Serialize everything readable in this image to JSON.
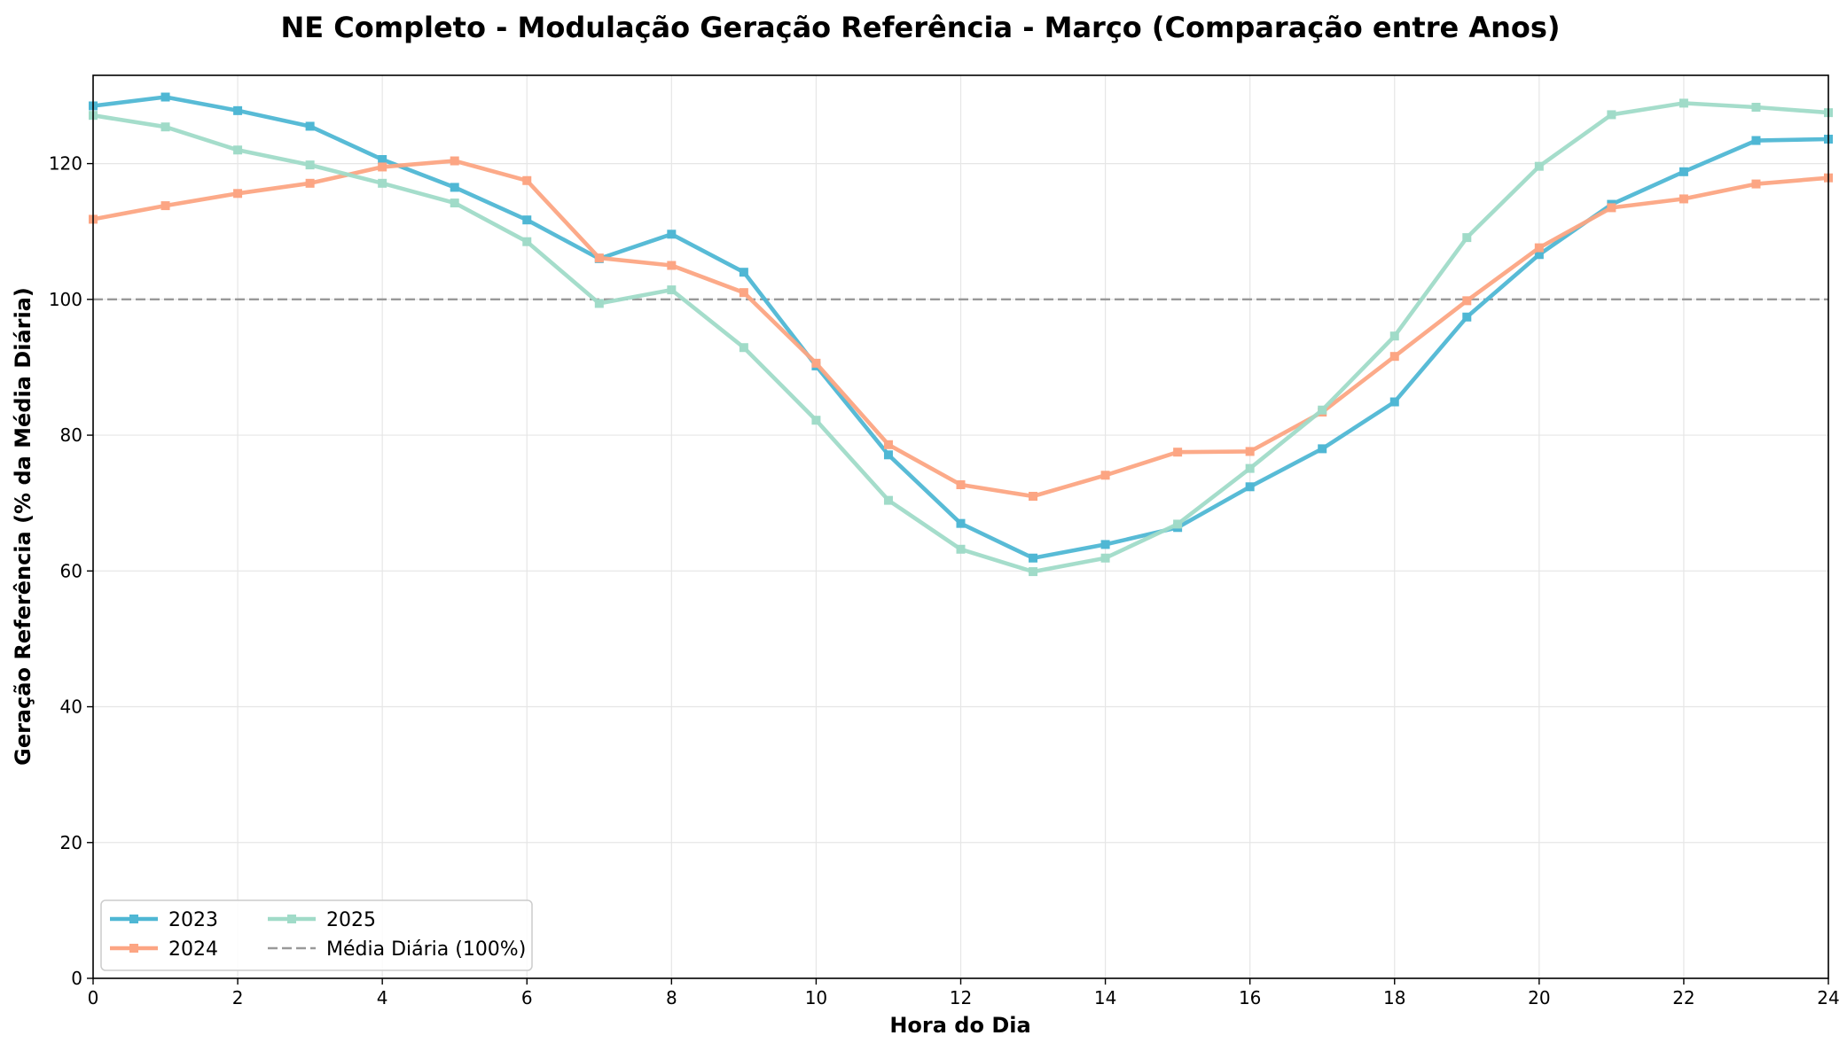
{
  "chart_data": {
    "type": "line",
    "title": "NE Completo - Modulação Geração Referência - Março (Comparação entre Anos)",
    "xlabel": "Hora do Dia",
    "ylabel": "Geração Referência (% da Média Diária)",
    "xlim": [
      0,
      24
    ],
    "ylim": [
      0,
      133
    ],
    "xticks": [
      0,
      2,
      4,
      6,
      8,
      10,
      12,
      14,
      16,
      18,
      20,
      22,
      24
    ],
    "yticks": [
      0,
      20,
      40,
      60,
      80,
      100,
      120
    ],
    "grid": true,
    "legend_position": "lower-left",
    "x": [
      0,
      1,
      2,
      3,
      4,
      5,
      6,
      7,
      8,
      9,
      10,
      11,
      12,
      13,
      14,
      15,
      16,
      17,
      18,
      19,
      20,
      21,
      22,
      23,
      24
    ],
    "series": [
      {
        "name": "2023",
        "color": "#4fb7d4",
        "marker": "square",
        "values": [
          128.5,
          129.8,
          127.8,
          125.5,
          120.6,
          116.5,
          111.7,
          106.0,
          109.6,
          104.0,
          90.2,
          77.1,
          67.0,
          61.9,
          63.9,
          66.4,
          72.4,
          78.0,
          84.9,
          97.4,
          106.6,
          114.0,
          118.8,
          123.4,
          123.6
        ]
      },
      {
        "name": "2024",
        "color": "#fca583",
        "marker": "square",
        "values": [
          111.8,
          113.8,
          115.6,
          117.1,
          119.5,
          120.4,
          117.5,
          106.1,
          105.0,
          101.0,
          90.6,
          78.6,
          72.7,
          71.0,
          74.1,
          77.5,
          77.6,
          83.4,
          91.6,
          99.8,
          107.6,
          113.5,
          114.8,
          117.0,
          117.9
        ]
      },
      {
        "name": "2025",
        "color": "#a0dbc8",
        "marker": "square",
        "values": [
          127.1,
          125.4,
          122.0,
          119.8,
          117.1,
          114.2,
          108.5,
          99.4,
          101.4,
          92.9,
          82.2,
          70.4,
          63.2,
          59.9,
          61.9,
          66.9,
          75.1,
          83.7,
          94.6,
          109.1,
          119.6,
          127.2,
          128.9,
          128.3,
          127.5
        ]
      }
    ],
    "reference_line": {
      "name": "Média Diária (100%)",
      "y": 100,
      "color": "#999999",
      "style": "dashed"
    }
  }
}
